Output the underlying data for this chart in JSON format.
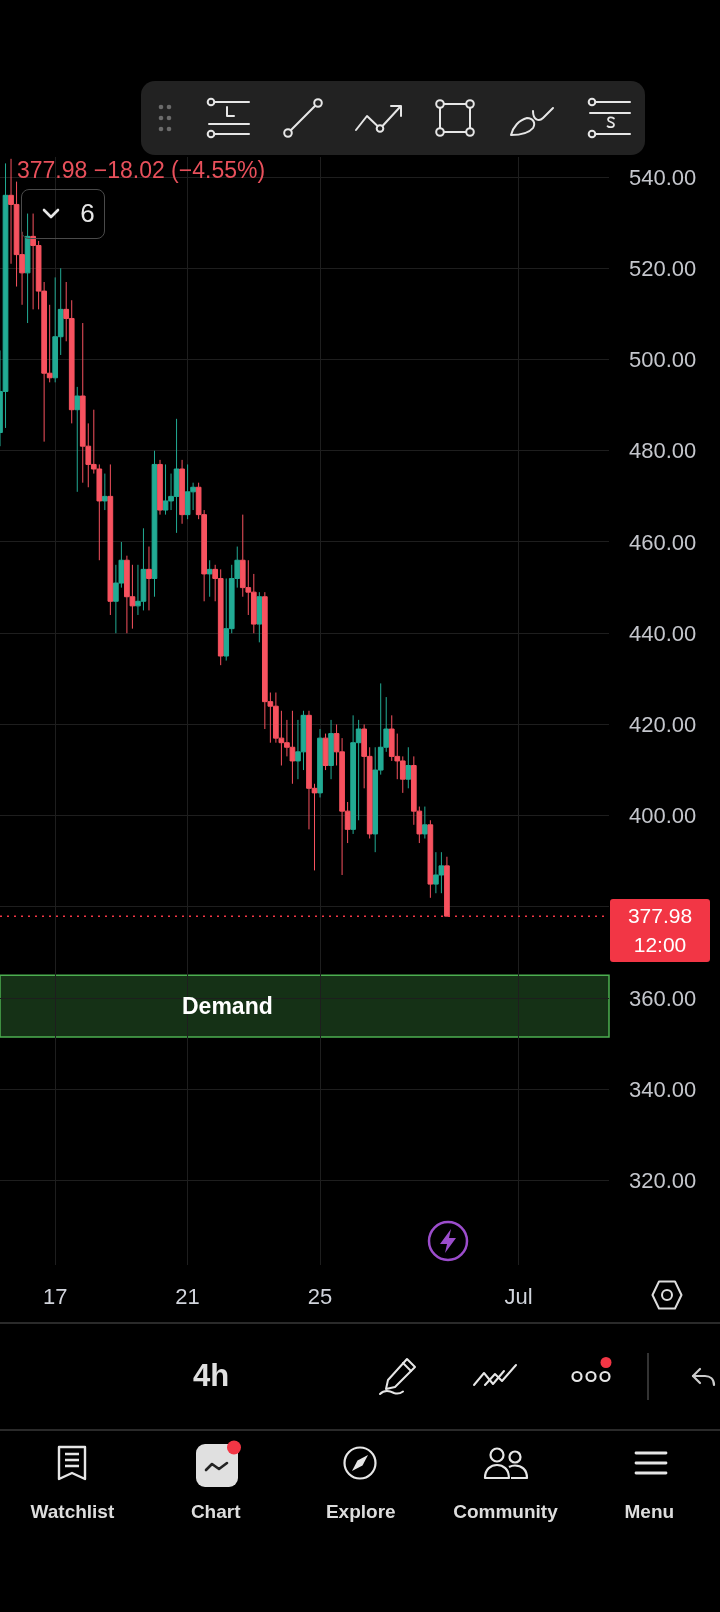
{
  "chart_data": {
    "type": "candlestick",
    "subtitle": "377.98 −18.02 (−4.55%)",
    "x": [
      "--06-15T08:00",
      "--06-15T12:00",
      "--06-15T16:00",
      "--06-15T20:00",
      "--06-16T00:00",
      "--06-16T04:00",
      "--06-16T08:00",
      "--06-16T12:00",
      "--06-16T16:00",
      "--06-16T20:00",
      "--06-17T00:00",
      "--06-17T04:00",
      "--06-17T08:00",
      "--06-17T12:00",
      "--06-17T16:00",
      "--06-17T20:00",
      "--06-18T00:00",
      "--06-18T04:00",
      "--06-18T08:00",
      "--06-18T12:00",
      "--06-18T16:00",
      "--06-18T20:00",
      "--06-19T00:00",
      "--06-19T04:00",
      "--06-19T08:00",
      "--06-19T12:00",
      "--06-19T16:00",
      "--06-19T20:00",
      "--06-20T00:00",
      "--06-20T04:00",
      "--06-20T08:00",
      "--06-20T12:00",
      "--06-20T16:00",
      "--06-20T20:00",
      "--06-21T00:00",
      "--06-21T04:00",
      "--06-21T08:00",
      "--06-21T12:00",
      "--06-21T16:00",
      "--06-21T20:00",
      "--06-22T00:00",
      "--06-22T04:00",
      "--06-22T08:00",
      "--06-22T12:00",
      "--06-22T16:00",
      "--06-22T20:00",
      "--06-23T00:00",
      "--06-23T04:00",
      "--06-23T08:00",
      "--06-23T12:00",
      "--06-23T16:00",
      "--06-23T20:00",
      "--06-24T00:00",
      "--06-24T04:00",
      "--06-24T08:00",
      "--06-24T12:00",
      "--06-24T16:00",
      "--06-24T20:00",
      "--06-25T00:00",
      "--06-25T04:00",
      "--06-25T08:00",
      "--06-25T12:00",
      "--06-25T16:00",
      "--06-25T20:00",
      "--06-26T00:00",
      "--06-26T04:00",
      "--06-26T08:00",
      "--06-26T12:00",
      "--06-26T16:00",
      "--06-26T20:00",
      "--06-27T00:00",
      "--06-27T04:00",
      "--06-27T08:00",
      "--06-27T12:00",
      "--06-27T16:00",
      "--06-27T20:00",
      "--06-28T00:00",
      "--06-28T04:00",
      "--06-28T08:00",
      "--06-28T12:00",
      "--06-28T16:00",
      "--06-28T20:00"
    ],
    "ohlc": [
      [
        484,
        502,
        481,
        493
      ],
      [
        493,
        543,
        485,
        536
      ],
      [
        536,
        544,
        521,
        534
      ],
      [
        534,
        539,
        516,
        523
      ],
      [
        523,
        528,
        512,
        519
      ],
      [
        519,
        532,
        508,
        527
      ],
      [
        527,
        532,
        511,
        525
      ],
      [
        525,
        526,
        511,
        515
      ],
      [
        515,
        517,
        482,
        497
      ],
      [
        497,
        512,
        495,
        496
      ],
      [
        496,
        518,
        495,
        505
      ],
      [
        505,
        520,
        501,
        511
      ],
      [
        511,
        517,
        504,
        509
      ],
      [
        509,
        513,
        486,
        489
      ],
      [
        489,
        494,
        471,
        492
      ],
      [
        492,
        508,
        473,
        481
      ],
      [
        481,
        486,
        472,
        477
      ],
      [
        477,
        489,
        475,
        476
      ],
      [
        476,
        477,
        456,
        469
      ],
      [
        469,
        475,
        467,
        470
      ],
      [
        470,
        477,
        444,
        447
      ],
      [
        447,
        455,
        440,
        451
      ],
      [
        451,
        460,
        450,
        456
      ],
      [
        456,
        457,
        440,
        448
      ],
      [
        448,
        455,
        441,
        446
      ],
      [
        446,
        455,
        444,
        447
      ],
      [
        447,
        463,
        445,
        454
      ],
      [
        454,
        459,
        445,
        452
      ],
      [
        452,
        480,
        448,
        477
      ],
      [
        477,
        478,
        466,
        467
      ],
      [
        467,
        477,
        466,
        469
      ],
      [
        469,
        475,
        467,
        470
      ],
      [
        470,
        487,
        462,
        476
      ],
      [
        476,
        478,
        464,
        466
      ],
      [
        466,
        477,
        465,
        471
      ],
      [
        471,
        473,
        467,
        472
      ],
      [
        472,
        473,
        465,
        466
      ],
      [
        466,
        467,
        447,
        453
      ],
      [
        453,
        456,
        448,
        454
      ],
      [
        454,
        455,
        447,
        452
      ],
      [
        452,
        454,
        433,
        435
      ],
      [
        435,
        452,
        434,
        441
      ],
      [
        441,
        455,
        440,
        452
      ],
      [
        452,
        459,
        450,
        456
      ],
      [
        456,
        466,
        448,
        450
      ],
      [
        450,
        456,
        444,
        449
      ],
      [
        449,
        453,
        440,
        442
      ],
      [
        442,
        449,
        438,
        448
      ],
      [
        448,
        449,
        419,
        425
      ],
      [
        425,
        427,
        416,
        424
      ],
      [
        424,
        427,
        416,
        417
      ],
      [
        417,
        423,
        411,
        416
      ],
      [
        416,
        421,
        413,
        415
      ],
      [
        415,
        423,
        407,
        412
      ],
      [
        412,
        421,
        408,
        414
      ],
      [
        414,
        423,
        410,
        422
      ],
      [
        422,
        423,
        397,
        406
      ],
      [
        406,
        407,
        388,
        405
      ],
      [
        405,
        419,
        404,
        417
      ],
      [
        417,
        418,
        410,
        411
      ],
      [
        411,
        421,
        408,
        418
      ],
      [
        418,
        420,
        411,
        414
      ],
      [
        414,
        417,
        387,
        401
      ],
      [
        401,
        403,
        394,
        397
      ],
      [
        397,
        422,
        396,
        416
      ],
      [
        416,
        421,
        399,
        419
      ],
      [
        419,
        420,
        406,
        413
      ],
      [
        413,
        415,
        395,
        396
      ],
      [
        396,
        415,
        392,
        410
      ],
      [
        410,
        429,
        409,
        415
      ],
      [
        415,
        426,
        414,
        419
      ],
      [
        419,
        422,
        412,
        413
      ],
      [
        413,
        418,
        408,
        412
      ],
      [
        412,
        413,
        405,
        408
      ],
      [
        408,
        415,
        406,
        411
      ],
      [
        411,
        413,
        398,
        401
      ],
      [
        401,
        402,
        394,
        396
      ],
      [
        396,
        402,
        395,
        398
      ],
      [
        398,
        399,
        382,
        385
      ],
      [
        385,
        392,
        383,
        387
      ],
      [
        387,
        392,
        383,
        389
      ],
      [
        389,
        391,
        377.98,
        377.98
      ]
    ],
    "colors": [
      "#22ab94",
      "#22ab94",
      "#f7525f",
      "#f7525f",
      "#f7525f",
      "#22ab94",
      "#f7525f",
      "#f7525f",
      "#f7525f",
      "#f7525f",
      "#22ab94",
      "#22ab94",
      "#f7525f",
      "#f7525f",
      "#22ab94",
      "#f7525f",
      "#f7525f",
      "#f7525f",
      "#f7525f",
      "#22ab94",
      "#f7525f",
      "#22ab94",
      "#22ab94",
      "#f7525f",
      "#f7525f",
      "#22ab94",
      "#22ab94",
      "#f7525f",
      "#22ab94",
      "#f7525f",
      "#22ab94",
      "#22ab94",
      "#22ab94",
      "#f7525f",
      "#22ab94",
      "#22ab94",
      "#f7525f",
      "#f7525f",
      "#22ab94",
      "#f7525f",
      "#f7525f",
      "#22ab94",
      "#22ab94",
      "#22ab94",
      "#f7525f",
      "#f7525f",
      "#f7525f",
      "#22ab94",
      "#f7525f",
      "#f7525f",
      "#f7525f",
      "#f7525f",
      "#f7525f",
      "#f7525f",
      "#22ab94",
      "#22ab94",
      "#f7525f",
      "#f7525f",
      "#22ab94",
      "#f7525f",
      "#22ab94",
      "#f7525f",
      "#f7525f",
      "#f7525f",
      "#22ab94",
      "#22ab94",
      "#f7525f",
      "#f7525f",
      "#22ab94",
      "#22ab94",
      "#22ab94",
      "#f7525f",
      "#f7525f",
      "#f7525f",
      "#22ab94",
      "#f7525f",
      "#f7525f",
      "#22ab94",
      "#f7525f",
      "#22ab94",
      "#22ab94",
      "#f7525f"
    ],
    "xlim": [
      "--06-15T08:00",
      "--07-03T17:30"
    ],
    "xticks": [
      {
        "value": "--06-17",
        "label": "17"
      },
      {
        "value": "--06-21",
        "label": "21"
      },
      {
        "value": "--06-25",
        "label": "25"
      },
      {
        "value": "--07-01",
        "label": "Jul"
      }
    ],
    "ylim": [
      301.5,
      544.4
    ],
    "yticks": [
      {
        "value": 320,
        "label": "320.00"
      },
      {
        "value": 340,
        "label": "340.00"
      },
      {
        "value": 360,
        "label": "360.00"
      },
      {
        "value": 380,
        "label": null
      },
      {
        "value": 400,
        "label": "400.00"
      },
      {
        "value": 420,
        "label": "420.00"
      },
      {
        "value": 440,
        "label": "440.00"
      },
      {
        "value": 460,
        "label": "460.00"
      },
      {
        "value": 480,
        "label": "480.00"
      },
      {
        "value": 500,
        "label": "500.00"
      },
      {
        "value": 520,
        "label": "520.00"
      },
      {
        "value": 540,
        "label": "540.00"
      }
    ],
    "grid": true,
    "bands": [
      {
        "axis": "y",
        "from": 351.5,
        "to": 365,
        "label": "Demand",
        "color": "#4caf50"
      }
    ],
    "ref_lines": [
      {
        "axis": "y",
        "value": 377.98,
        "label": "377.98",
        "color": "#f23645",
        "line_style": "dotted"
      }
    ],
    "annotations": [
      "12:00",
      "6",
      "4h",
      "Watchlist",
      "Chart",
      "Explore",
      "Community",
      "Menu"
    ]
  }
}
